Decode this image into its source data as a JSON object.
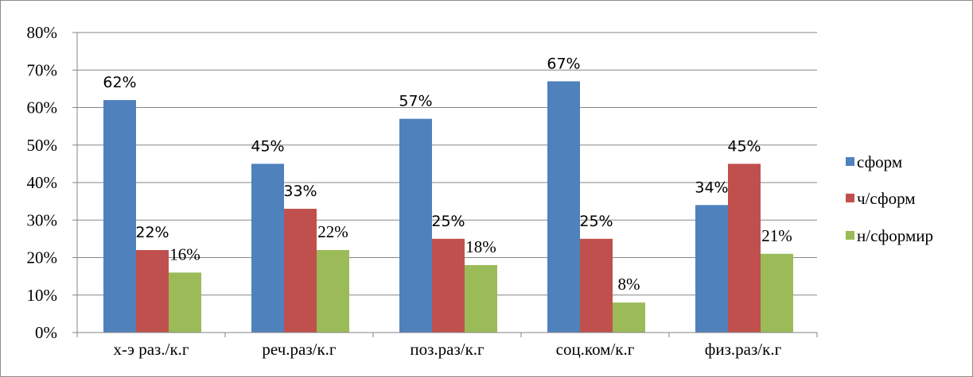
{
  "chart_data": {
    "type": "bar",
    "categories": [
      "х-э  раз./к.г",
      "реч.раз/к.г",
      "поз.раз/к.г",
      "соц.ком/к.г",
      "физ.раз/к.г"
    ],
    "series": [
      {
        "name": "сформ",
        "values": [
          62,
          45,
          57,
          67,
          34
        ],
        "color": "#4f81bd",
        "labels": [
          "62%",
          "45%",
          "57%",
          "67%",
          "34%"
        ]
      },
      {
        "name": "ч/сформ",
        "values": [
          22,
          33,
          25,
          25,
          45
        ],
        "color": "#c0504d",
        "labels": [
          "22%",
          "33%",
          "25%",
          "25%",
          "45%"
        ]
      },
      {
        "name": "н/сформир",
        "values": [
          16,
          22,
          18,
          8,
          21
        ],
        "color": "#9bbb59",
        "labels": [
          "16%",
          "22%",
          "18%",
          "8%",
          "21%"
        ]
      }
    ],
    "ylim": [
      0,
      80
    ],
    "y_ticks": [
      "0%",
      "10%",
      "20%",
      "30%",
      "40%",
      "50%",
      "60%",
      "70%",
      "80%"
    ],
    "grid": true,
    "legend_position": "right",
    "title": "",
    "xlabel": "",
    "ylabel": ""
  }
}
